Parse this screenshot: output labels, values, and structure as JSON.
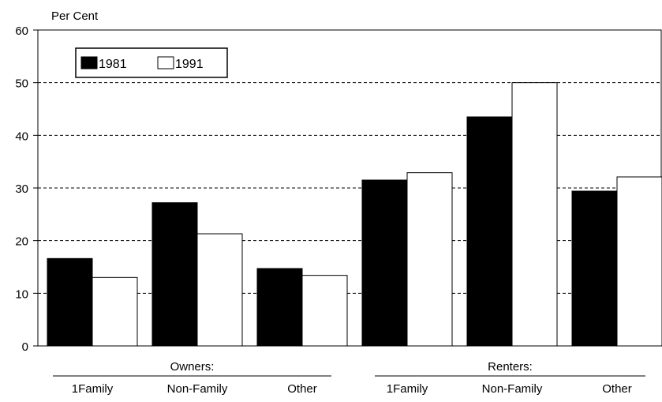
{
  "chart_data": {
    "type": "bar",
    "ylabel": "Per Cent",
    "ylim": [
      0,
      60
    ],
    "yticks": [
      0,
      10,
      20,
      30,
      40,
      50,
      60
    ],
    "grid": true,
    "legend_position": "top-left",
    "groups": [
      {
        "label": "Owners:",
        "categories": [
          "1Family",
          "Non-Family",
          "Other"
        ]
      },
      {
        "label": "Renters:",
        "categories": [
          "1Family",
          "Non-Family",
          "Other"
        ]
      }
    ],
    "categories": [
      "1Family",
      "Non-Family",
      "Other",
      "1Family",
      "Non-Family",
      "Other"
    ],
    "series": [
      {
        "name": "1981",
        "color": "#000000",
        "values": [
          16.6,
          27.2,
          14.7,
          31.5,
          43.5,
          29.4
        ]
      },
      {
        "name": "1991",
        "color": "#ffffff",
        "values": [
          13.0,
          21.3,
          13.4,
          32.9,
          50.0,
          32.1
        ]
      }
    ]
  }
}
